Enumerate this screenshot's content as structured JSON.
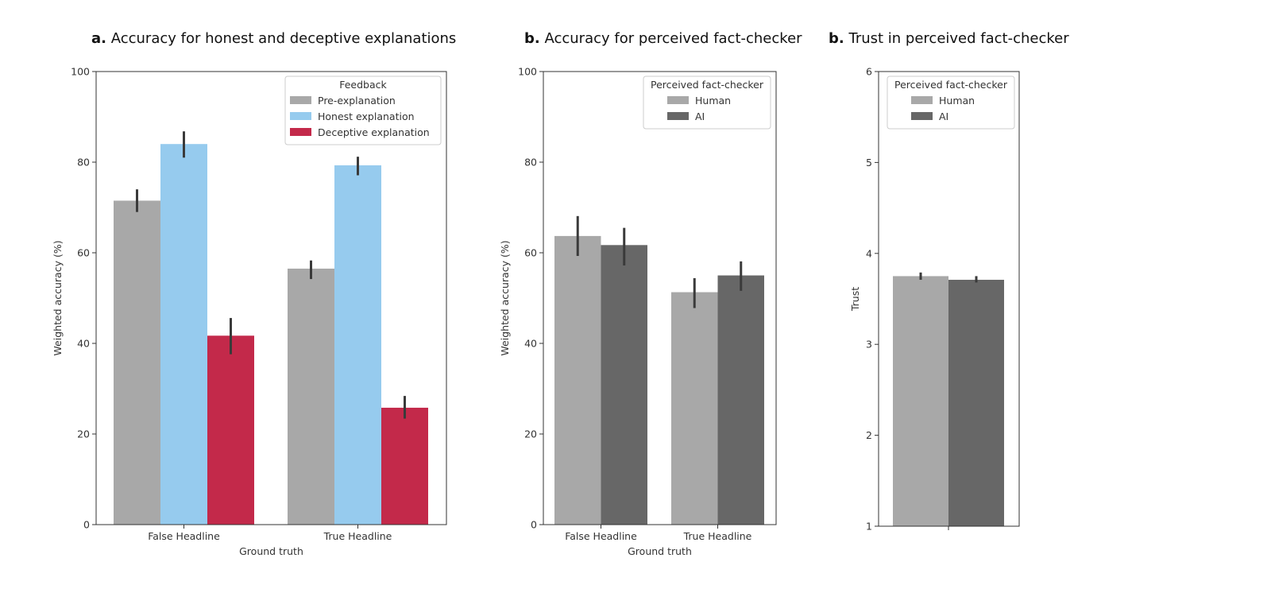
{
  "chart_data": [
    {
      "type": "bar",
      "panel_label": "a.",
      "title": "Accuracy for honest and deceptive explanations",
      "xlabel": "Ground truth",
      "ylabel": "Weighted accuracy (%)",
      "ylim": [
        0,
        100
      ],
      "yticks": [
        "0",
        "20",
        "40",
        "60",
        "80",
        "100"
      ],
      "categories": [
        "False Headline",
        "True Headline"
      ],
      "legend": {
        "title": "Feedback",
        "position": "top-right"
      },
      "series": [
        {
          "name": "Pre-explanation",
          "color": "#a8a8a8",
          "values": [
            71.5,
            56.5
          ],
          "err": [
            [
              69,
              74
            ],
            [
              54.2,
              58.3
            ]
          ]
        },
        {
          "name": "Honest explanation",
          "color": "#96cbee",
          "values": [
            84,
            79.3
          ],
          "err": [
            [
              81,
              86.8
            ],
            [
              77.1,
              81.2
            ]
          ]
        },
        {
          "name": "Deceptive explanation",
          "color": "#c3294a",
          "values": [
            41.7,
            25.8
          ],
          "err": [
            [
              37.6,
              45.6
            ],
            [
              23.4,
              28.4
            ]
          ]
        }
      ]
    },
    {
      "type": "bar",
      "panel_label": "b.",
      "title": "Accuracy for perceived fact-checker",
      "xlabel": "Ground truth",
      "ylabel": "Weighted accuracy (%)",
      "ylim": [
        0,
        100
      ],
      "yticks": [
        "0",
        "20",
        "40",
        "60",
        "80",
        "100"
      ],
      "categories": [
        "False Headline",
        "True Headline"
      ],
      "legend": {
        "title": "Perceived fact-checker",
        "position": "top-right"
      },
      "series": [
        {
          "name": "Human",
          "color": "#a8a8a8",
          "values": [
            63.7,
            51.3
          ],
          "err": [
            [
              59.3,
              68.1
            ],
            [
              47.8,
              54.4
            ]
          ]
        },
        {
          "name": "AI",
          "color": "#676767",
          "values": [
            61.7,
            55
          ],
          "err": [
            [
              57.2,
              65.5
            ],
            [
              51.6,
              58.1
            ]
          ]
        }
      ]
    },
    {
      "type": "bar",
      "panel_label": "b.",
      "title": "Trust in perceived fact-checker",
      "xlabel": "",
      "ylabel": "Trust",
      "ylim": [
        1,
        6
      ],
      "yticks": [
        "1",
        "2",
        "3",
        "4",
        "5",
        "6"
      ],
      "categories": [
        ""
      ],
      "legend": {
        "title": "Perceived fact-checker",
        "position": "top-left"
      },
      "series": [
        {
          "name": "Human",
          "color": "#a8a8a8",
          "values": [
            3.75
          ],
          "err": [
            [
              3.71,
              3.79
            ]
          ]
        },
        {
          "name": "AI",
          "color": "#676767",
          "values": [
            3.71
          ],
          "err": [
            [
              3.68,
              3.75
            ]
          ]
        }
      ]
    }
  ]
}
